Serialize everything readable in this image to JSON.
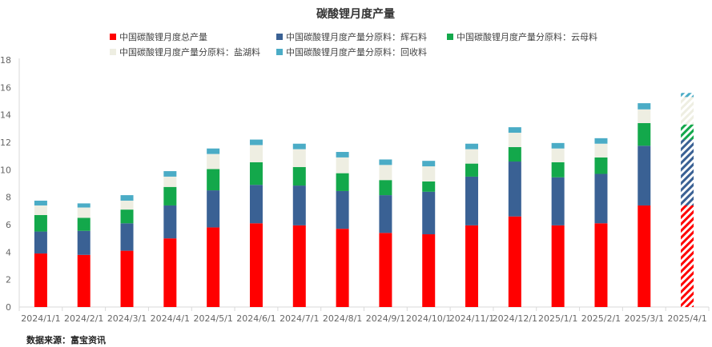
{
  "chart_data": {
    "type": "bar",
    "stacked": true,
    "title": "碳酸锂月度产量",
    "source": "数据来源：富宝资讯",
    "ylim": [
      0,
      18
    ],
    "yticks": [
      0,
      2,
      4,
      6,
      8,
      10,
      12,
      14,
      16,
      18
    ],
    "categories": [
      "2024/1/1",
      "2024/2/1",
      "2024/3/1",
      "2024/4/1",
      "2024/5/1",
      "2024/6/1",
      "2024/7/1",
      "2024/8/1",
      "2024/9/1",
      "2024/10/1",
      "2024/11/1",
      "2024/12/1",
      "2025/1/1",
      "2025/2/1",
      "2025/3/1",
      "2025/4/1"
    ],
    "forecast_index": 15,
    "series": [
      {
        "name": "中国碳酸锂月度总产量",
        "color": "#ff0000",
        "values": [
          3.9,
          3.8,
          4.1,
          5.0,
          5.8,
          6.1,
          5.95,
          5.7,
          5.4,
          5.3,
          5.95,
          6.6,
          5.95,
          6.1,
          7.4,
          7.4
        ]
      },
      {
        "name": "中国碳酸锂月度产量分原料：辉石料",
        "color": "#3a6194",
        "values": [
          1.6,
          1.75,
          2.0,
          2.4,
          2.7,
          2.8,
          2.9,
          2.75,
          2.75,
          3.1,
          3.55,
          4.0,
          3.5,
          3.6,
          4.35,
          4.8
        ]
      },
      {
        "name": "中国碳酸锂月度产量分原料：云母料",
        "color": "#13a84b",
        "values": [
          1.2,
          0.95,
          1.0,
          1.35,
          1.55,
          1.65,
          1.35,
          1.3,
          1.1,
          0.75,
          0.95,
          1.05,
          1.1,
          1.2,
          1.65,
          1.1
        ]
      },
      {
        "name": "中国碳酸锂月度产量分原料：盐湖料",
        "color": "#eeeee2",
        "values": [
          0.7,
          0.75,
          0.65,
          0.75,
          1.1,
          1.25,
          1.3,
          1.15,
          1.1,
          1.1,
          1.05,
          1.05,
          1.0,
          1.0,
          1.0,
          2.0
        ]
      },
      {
        "name": "中国碳酸锂月度产量分原料：回收料",
        "color": "#4bacc6",
        "values": [
          0.35,
          0.3,
          0.4,
          0.4,
          0.4,
          0.4,
          0.4,
          0.4,
          0.4,
          0.4,
          0.4,
          0.4,
          0.4,
          0.4,
          0.45,
          0.3
        ]
      }
    ]
  }
}
